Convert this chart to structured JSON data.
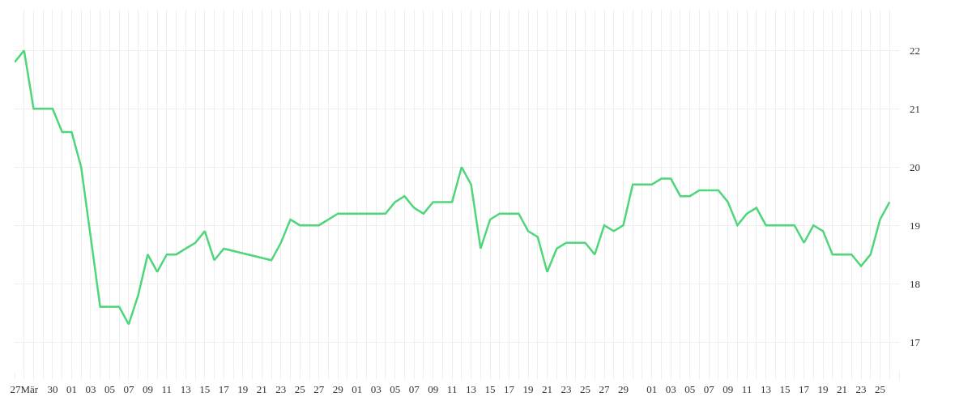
{
  "chart_data": {
    "type": "line",
    "x": [
      "--03-26",
      "--03-27",
      "--03-28",
      "--03-30",
      "--03-31",
      "--04-01",
      "--04-02",
      "--04-04",
      "--04-06",
      "--04-07",
      "--04-08",
      "--04-09",
      "--04-10",
      "--04-11",
      "--04-12",
      "--04-13",
      "--04-14",
      "--04-15",
      "--04-16",
      "--04-17",
      "--04-22",
      "--04-23",
      "--04-24",
      "--04-25",
      "--04-27",
      "--04-29",
      "--05-04",
      "--05-05",
      "--05-06",
      "--05-07",
      "--05-08",
      "--05-09",
      "--05-11",
      "--05-12",
      "--05-13",
      "--05-14",
      "--05-15",
      "--05-16",
      "--05-18",
      "--05-19",
      "--05-20",
      "--05-21",
      "--05-22",
      "--05-23",
      "--05-25",
      "--05-26",
      "--05-27",
      "--05-28",
      "--05-29",
      "--05-30",
      "--06-01",
      "--06-02",
      "--06-03",
      "--06-04",
      "--06-05",
      "--06-06",
      "--06-08",
      "--06-09",
      "--06-10",
      "--06-11",
      "--06-12",
      "--06-13",
      "--06-16",
      "--06-17",
      "--06-18",
      "--06-19",
      "--06-20",
      "--06-22",
      "--06-23",
      "--06-24",
      "--06-25",
      "--06-26"
    ],
    "series": [
      {
        "color": "#4fd67a",
        "values": [
          21.8,
          22.0,
          21.0,
          21.0,
          20.6,
          20.6,
          20.0,
          17.6,
          17.6,
          17.3,
          17.8,
          18.5,
          18.2,
          18.5,
          18.5,
          18.6,
          18.7,
          18.9,
          18.4,
          18.6,
          18.4,
          18.7,
          19.1,
          19.0,
          19.0,
          19.2,
          19.2,
          19.4,
          19.5,
          19.3,
          19.2,
          19.4,
          19.4,
          20.0,
          19.7,
          18.6,
          19.1,
          19.2,
          19.2,
          18.9,
          18.8,
          18.2,
          18.6,
          18.7,
          18.7,
          18.5,
          19.0,
          18.9,
          19.0,
          19.7,
          19.7,
          19.8,
          19.8,
          19.5,
          19.5,
          19.6,
          19.6,
          19.4,
          19.0,
          19.2,
          19.3,
          19.0,
          19.0,
          18.7,
          19.0,
          18.9,
          18.5,
          18.5,
          18.3,
          18.5,
          19.1,
          19.4
        ]
      }
    ],
    "ylim": [
      16.5,
      22.7
    ],
    "yticks": [
      17,
      18,
      19,
      20,
      21,
      22
    ],
    "xlim": [
      "--03-26",
      "--06-27"
    ],
    "xticks": [
      {
        "value": "--03-26",
        "label": null
      },
      {
        "value": "--03-27",
        "label": "27Mär"
      },
      {
        "value": "--03-28",
        "label": null
      },
      {
        "value": "--03-29",
        "label": null
      },
      {
        "value": "--03-30",
        "label": "30"
      },
      {
        "value": "--03-31",
        "label": null
      },
      {
        "value": "--04-01",
        "label": "01"
      },
      {
        "value": "--04-02",
        "label": null
      },
      {
        "value": "--04-03",
        "label": "03"
      },
      {
        "value": "--04-04",
        "label": null
      },
      {
        "value": "--04-05",
        "label": "05"
      },
      {
        "value": "--04-06",
        "label": null
      },
      {
        "value": "--04-07",
        "label": "07"
      },
      {
        "value": "--04-08",
        "label": null
      },
      {
        "value": "--04-09",
        "label": "09"
      },
      {
        "value": "--04-10",
        "label": null
      },
      {
        "value": "--04-11",
        "label": "11"
      },
      {
        "value": "--04-12",
        "label": null
      },
      {
        "value": "--04-13",
        "label": "13"
      },
      {
        "value": "--04-14",
        "label": null
      },
      {
        "value": "--04-15",
        "label": "15"
      },
      {
        "value": "--04-16",
        "label": null
      },
      {
        "value": "--04-17",
        "label": "17"
      },
      {
        "value": "--04-18",
        "label": null
      },
      {
        "value": "--04-19",
        "label": "19"
      },
      {
        "value": "--04-20",
        "label": null
      },
      {
        "value": "--04-21",
        "label": "21"
      },
      {
        "value": "--04-22",
        "label": null
      },
      {
        "value": "--04-23",
        "label": "23"
      },
      {
        "value": "--04-24",
        "label": null
      },
      {
        "value": "--04-25",
        "label": "25"
      },
      {
        "value": "--04-26",
        "label": null
      },
      {
        "value": "--04-27",
        "label": "27"
      },
      {
        "value": "--04-28",
        "label": null
      },
      {
        "value": "--04-29",
        "label": "29"
      },
      {
        "value": "--04-30",
        "label": null
      },
      {
        "value": "--05-01",
        "label": "01"
      },
      {
        "value": "--05-02",
        "label": null
      },
      {
        "value": "--05-03",
        "label": "03"
      },
      {
        "value": "--05-04",
        "label": null
      },
      {
        "value": "--05-05",
        "label": "05"
      },
      {
        "value": "--05-06",
        "label": null
      },
      {
        "value": "--05-07",
        "label": "07"
      },
      {
        "value": "--05-08",
        "label": null
      },
      {
        "value": "--05-09",
        "label": "09"
      },
      {
        "value": "--05-10",
        "label": null
      },
      {
        "value": "--05-11",
        "label": "11"
      },
      {
        "value": "--05-12",
        "label": null
      },
      {
        "value": "--05-13",
        "label": "13"
      },
      {
        "value": "--05-14",
        "label": null
      },
      {
        "value": "--05-15",
        "label": "15"
      },
      {
        "value": "--05-16",
        "label": null
      },
      {
        "value": "--05-17",
        "label": "17"
      },
      {
        "value": "--05-18",
        "label": null
      },
      {
        "value": "--05-19",
        "label": "19"
      },
      {
        "value": "--05-20",
        "label": null
      },
      {
        "value": "--05-21",
        "label": "21"
      },
      {
        "value": "--05-22",
        "label": null
      },
      {
        "value": "--05-23",
        "label": "23"
      },
      {
        "value": "--05-24",
        "label": null
      },
      {
        "value": "--05-25",
        "label": "25"
      },
      {
        "value": "--05-26",
        "label": null
      },
      {
        "value": "--05-27",
        "label": "27"
      },
      {
        "value": "--05-28",
        "label": null
      },
      {
        "value": "--05-29",
        "label": "29"
      },
      {
        "value": "--05-30",
        "label": null
      },
      {
        "value": "--05-31",
        "label": null
      },
      {
        "value": "--06-01",
        "label": "01"
      },
      {
        "value": "--06-02",
        "label": null
      },
      {
        "value": "--06-03",
        "label": "03"
      },
      {
        "value": "--06-04",
        "label": null
      },
      {
        "value": "--06-05",
        "label": "05"
      },
      {
        "value": "--06-06",
        "label": null
      },
      {
        "value": "--06-07",
        "label": "07"
      },
      {
        "value": "--06-08",
        "label": null
      },
      {
        "value": "--06-09",
        "label": "09"
      },
      {
        "value": "--06-10",
        "label": null
      },
      {
        "value": "--06-11",
        "label": "11"
      },
      {
        "value": "--06-12",
        "label": null
      },
      {
        "value": "--06-13",
        "label": "13"
      },
      {
        "value": "--06-14",
        "label": null
      },
      {
        "value": "--06-15",
        "label": "15"
      },
      {
        "value": "--06-16",
        "label": null
      },
      {
        "value": "--06-17",
        "label": "17"
      },
      {
        "value": "--06-18",
        "label": null
      },
      {
        "value": "--06-19",
        "label": "19"
      },
      {
        "value": "--06-20",
        "label": null
      },
      {
        "value": "--06-21",
        "label": "21"
      },
      {
        "value": "--06-22",
        "label": null
      },
      {
        "value": "--06-23",
        "label": "23"
      },
      {
        "value": "--06-24",
        "label": null
      },
      {
        "value": "--06-25",
        "label": "25"
      },
      {
        "value": "--06-26",
        "label": null
      },
      {
        "value": "--06-27",
        "label": null
      }
    ],
    "grid": true,
    "legend": false,
    "marker": "none",
    "line_style": "solid"
  }
}
